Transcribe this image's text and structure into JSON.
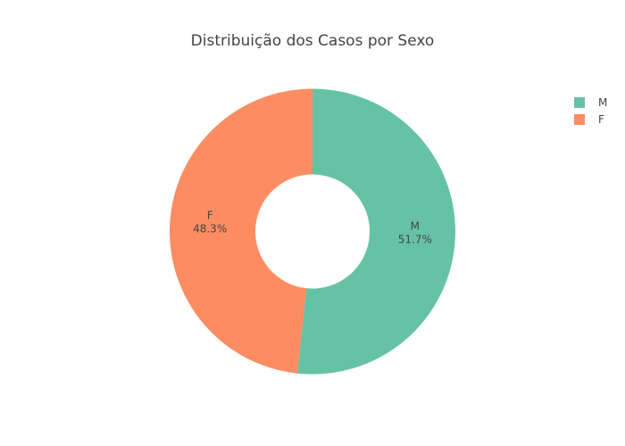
{
  "chart_data": {
    "type": "pie",
    "title": "Distribuição dos Casos por Sexo",
    "hole": true,
    "categories": [
      "M",
      "F"
    ],
    "values": [
      51.7,
      48.3
    ],
    "labels": [
      "51.7%",
      "48.3%"
    ],
    "colors": [
      "#66c2a5",
      "#fc8d62"
    ],
    "legend": {
      "position": "top-right",
      "entries": [
        "M",
        "F"
      ]
    }
  }
}
